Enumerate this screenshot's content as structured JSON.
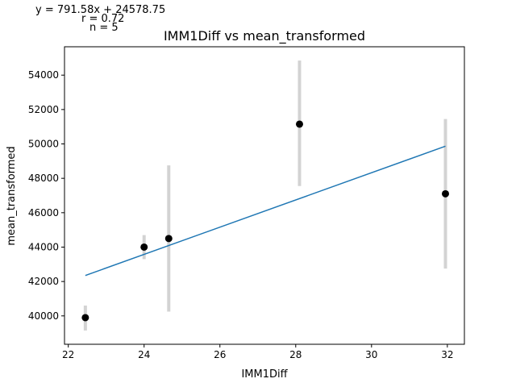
{
  "annotations": {
    "equation": "y = 791.58x + 24578.75",
    "r": "r = 0.72",
    "n": "n = 5"
  },
  "chart_data": {
    "type": "scatter",
    "title": "IMM1Diff vs mean_transformed",
    "xlabel": "IMM1Diff",
    "ylabel": "mean_transformed",
    "xlim": [
      21.9,
      32.45
    ],
    "ylim": [
      38350,
      55650
    ],
    "xticks": [
      22,
      24,
      26,
      28,
      30,
      32
    ],
    "yticks": [
      40000,
      42000,
      44000,
      46000,
      48000,
      50000,
      52000,
      54000
    ],
    "points": [
      {
        "x": 22.45,
        "y": 39900,
        "err_low": 39150,
        "err_high": 40600
      },
      {
        "x": 24.0,
        "y": 44000,
        "err_low": 43300,
        "err_high": 44700
      },
      {
        "x": 24.65,
        "y": 44500,
        "err_low": 40250,
        "err_high": 48750
      },
      {
        "x": 28.1,
        "y": 51150,
        "err_low": 47550,
        "err_high": 54850
      },
      {
        "x": 31.95,
        "y": 47100,
        "err_low": 42750,
        "err_high": 51450
      }
    ],
    "fit": {
      "slope": 791.58,
      "intercept": 24578.75,
      "x_range": [
        22.45,
        31.95
      ]
    },
    "colors": {
      "points": "#000000",
      "errorbars": "#d3d3d3",
      "fit": "#1f77b4"
    },
    "grid": false
  }
}
